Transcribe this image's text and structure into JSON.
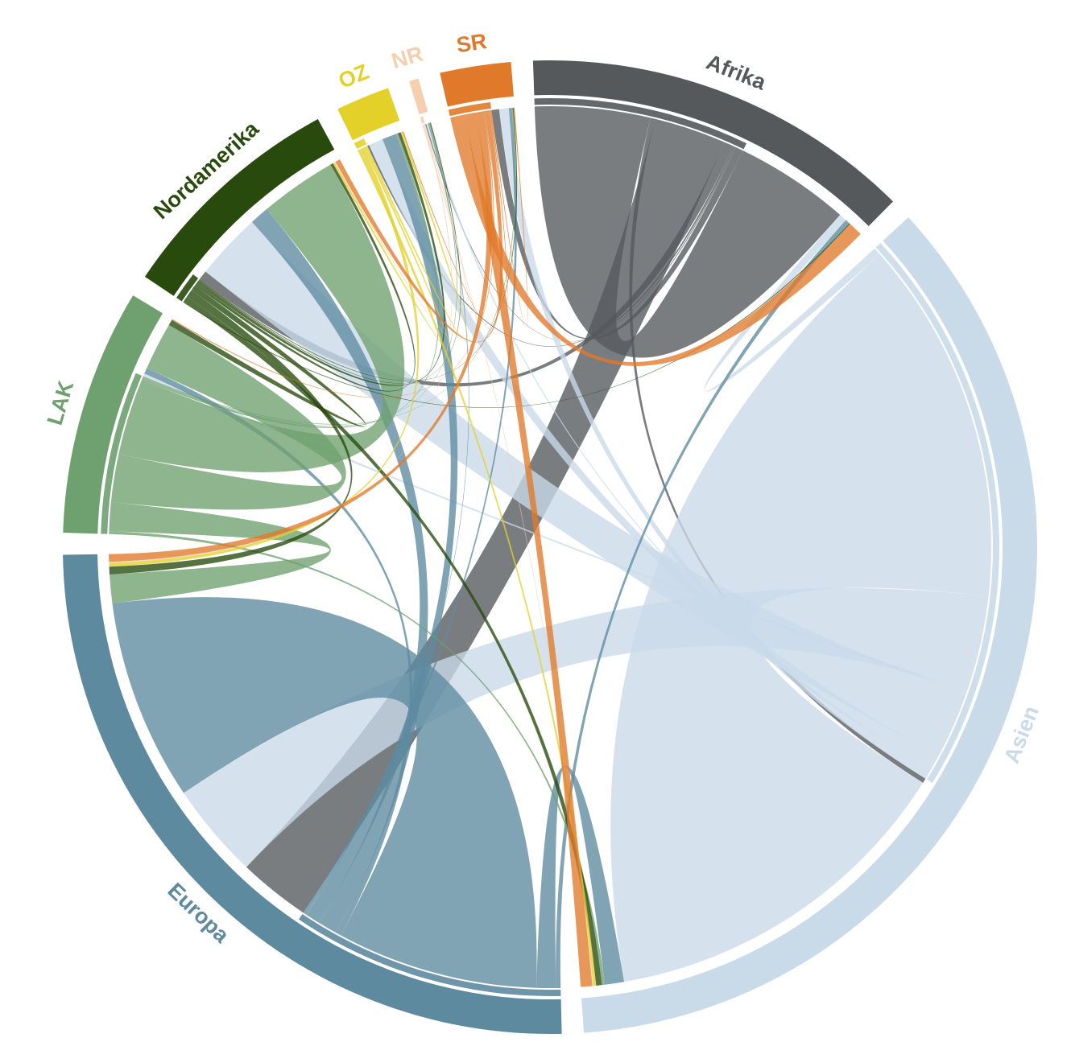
{
  "chart_data": {
    "type": "chord",
    "regions": [
      "Afrika",
      "Asien",
      "Europa",
      "LAK",
      "Nordamerika",
      "OZ",
      "NR",
      "SR"
    ],
    "colors": [
      "#55595c",
      "#c9dae9",
      "#5e8aa0",
      "#6fa070",
      "#284a0c",
      "#e3d12a",
      "#f5cfb0",
      "#e07a2a"
    ],
    "matrix": [
      [
        12,
        0.5,
        7.5,
        0,
        1,
        0.2,
        0.1,
        0.8
      ],
      [
        0.8,
        38,
        10,
        0.3,
        7,
        1.5,
        0.2,
        1
      ],
      [
        0.5,
        2,
        21,
        0.6,
        2,
        1.5,
        0.1,
        0.3
      ],
      [
        0,
        0.3,
        3,
        5,
        8,
        0.2,
        0.1,
        0.1
      ],
      [
        0.1,
        0.6,
        0.8,
        0.6,
        0.3,
        0.3,
        0.1,
        0.1
      ],
      [
        0,
        0.3,
        0.4,
        0,
        0.2,
        0.2,
        0,
        0
      ],
      [
        0,
        0.1,
        0.1,
        0,
        0.1,
        0,
        0,
        0
      ],
      [
        1.5,
        1.2,
        0.8,
        0.1,
        0.5,
        0.1,
        0,
        0.1
      ]
    ]
  }
}
